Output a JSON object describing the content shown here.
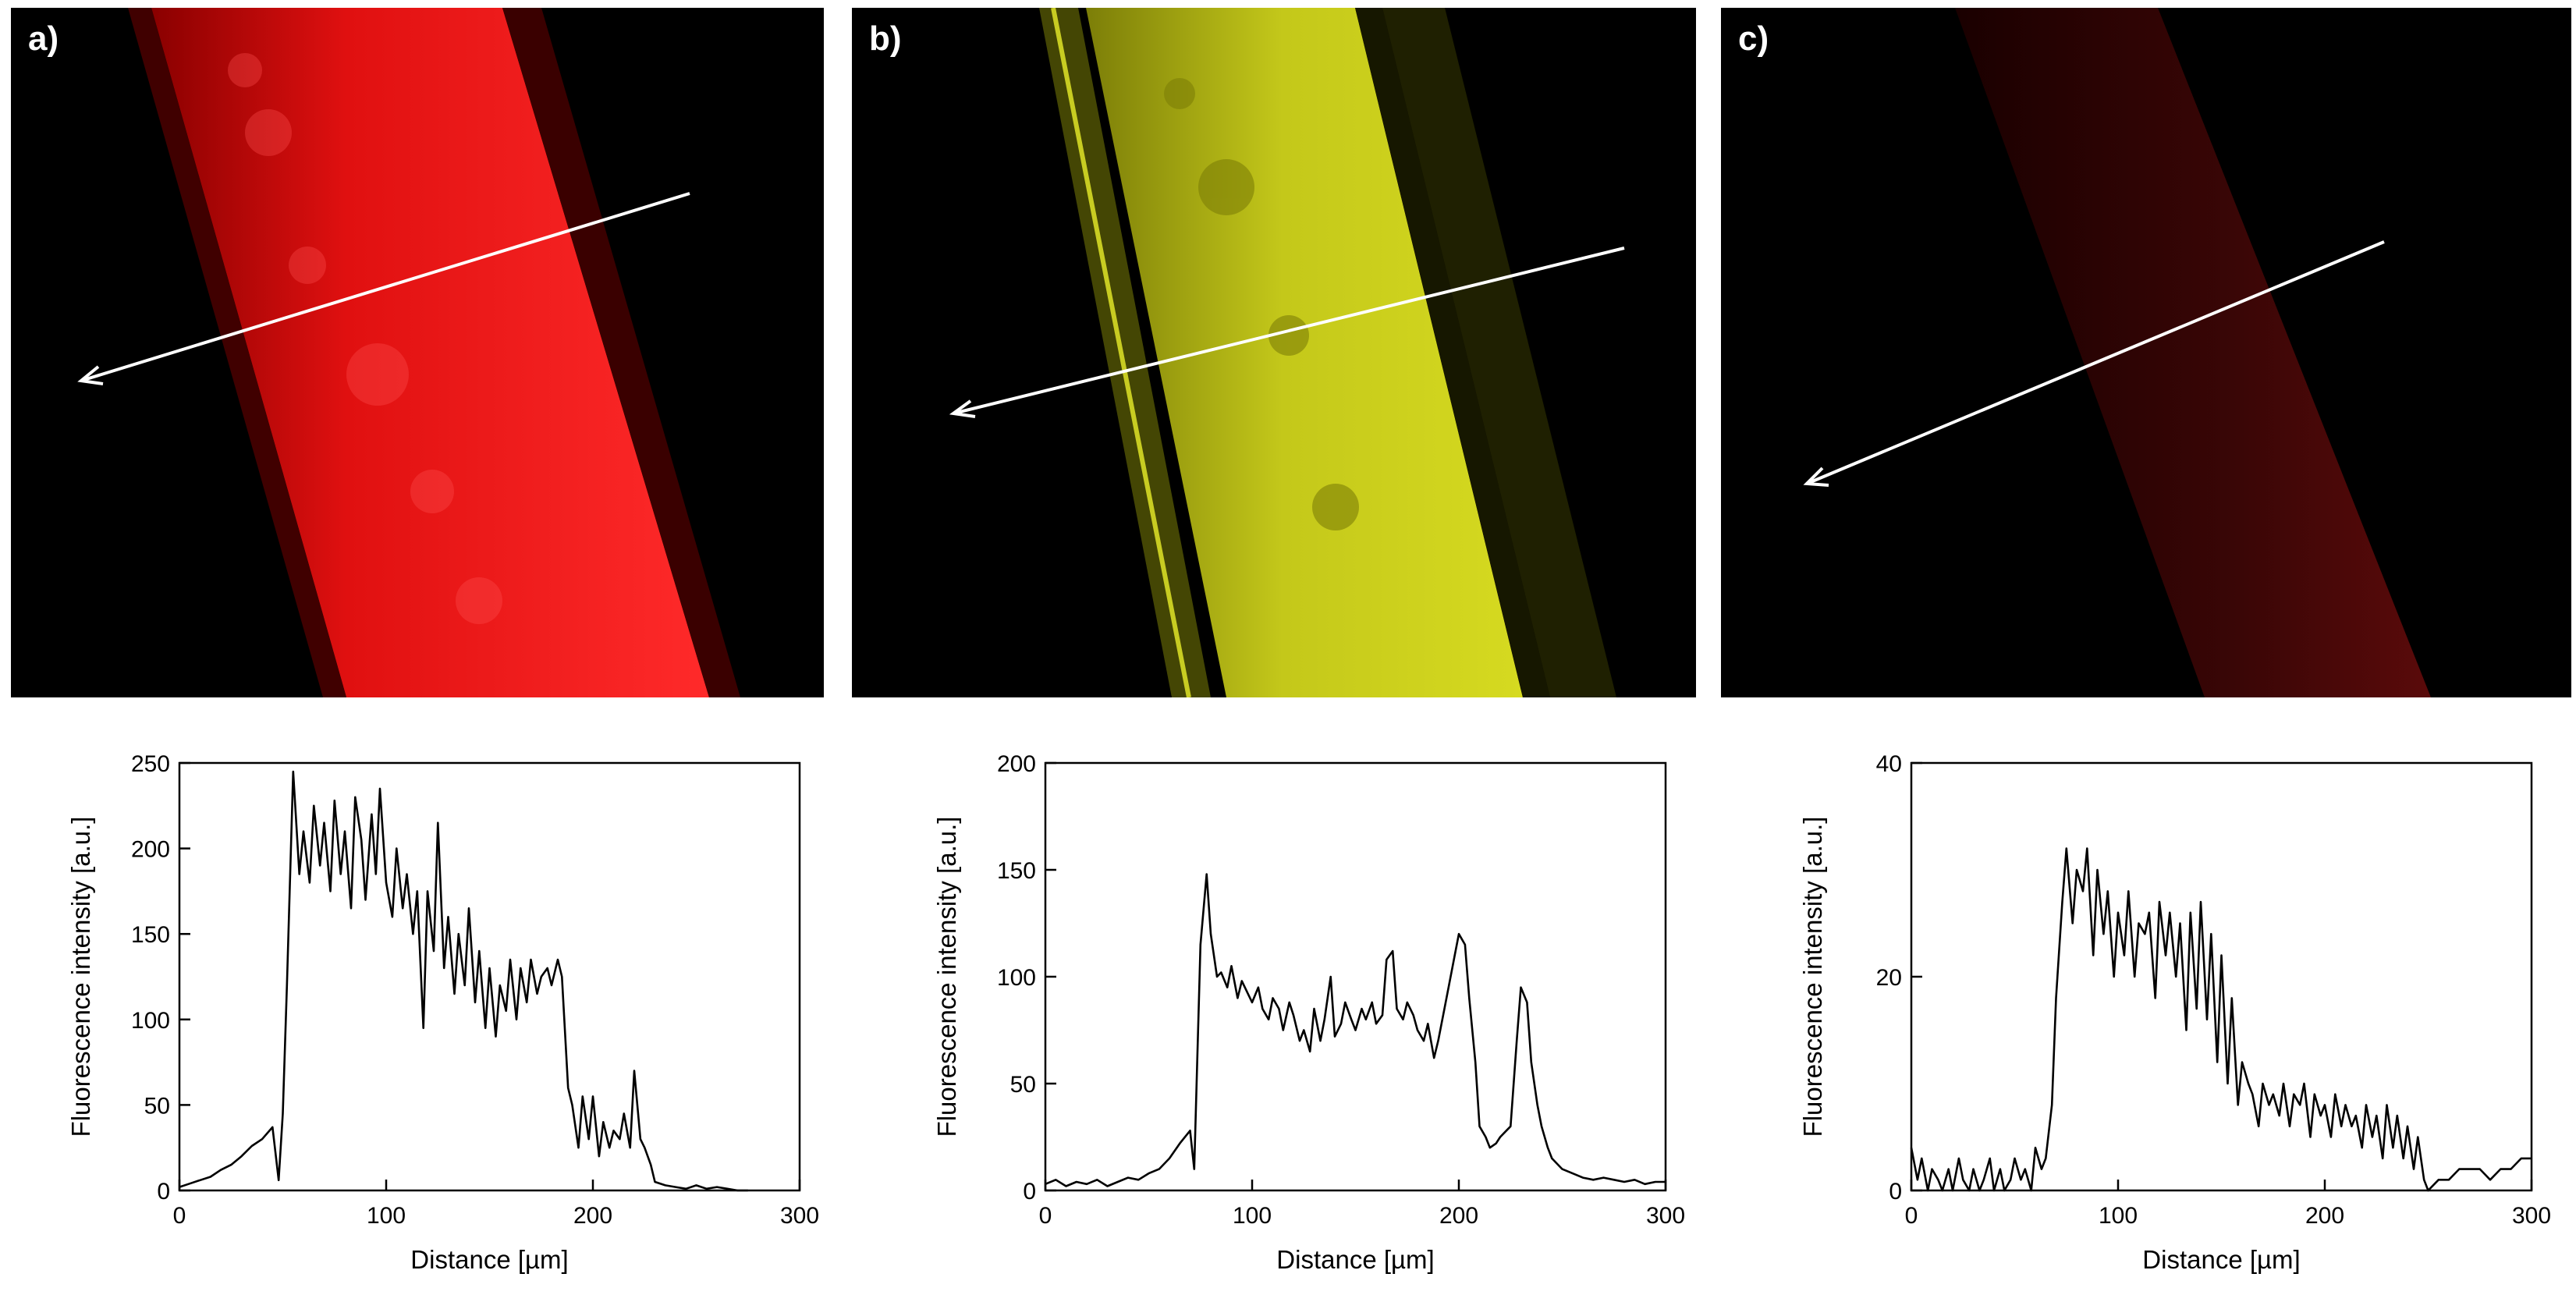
{
  "panels": [
    {
      "label": "a)",
      "tint": "#ff1a1a",
      "stripe_opacity": 0.95
    },
    {
      "label": "b)",
      "tint": "#d4d81c",
      "stripe_opacity": 0.9
    },
    {
      "label": "c)",
      "tint": "#5a0a0a",
      "stripe_opacity": 0.55
    }
  ],
  "chart_data": [
    {
      "type": "line",
      "xlabel": "Distance [µm]",
      "ylabel": "Fluorescence intensity [a.u.]",
      "xlim": [
        0,
        300
      ],
      "ylim": [
        0,
        250
      ],
      "xticks": [
        0,
        100,
        200,
        300
      ],
      "yticks": [
        0,
        50,
        100,
        150,
        200,
        250
      ],
      "series": [
        {
          "x": [
            0,
            5,
            10,
            15,
            20,
            25,
            30,
            35,
            40,
            45,
            48,
            50,
            52,
            55,
            58,
            60,
            63,
            65,
            68,
            70,
            73,
            75,
            78,
            80,
            83,
            85,
            88,
            90,
            93,
            95,
            97,
            100,
            103,
            105,
            108,
            110,
            113,
            115,
            118,
            120,
            123,
            125,
            128,
            130,
            133,
            135,
            138,
            140,
            143,
            145,
            148,
            150,
            153,
            155,
            158,
            160,
            163,
            165,
            168,
            170,
            173,
            175,
            178,
            180,
            183,
            185,
            188,
            190,
            193,
            195,
            198,
            200,
            203,
            205,
            208,
            210,
            213,
            215,
            218,
            220,
            223,
            225,
            228,
            230,
            235,
            240,
            245,
            250,
            255,
            260,
            265,
            270,
            275
          ],
          "y": [
            2,
            4,
            6,
            8,
            12,
            15,
            20,
            26,
            30,
            37,
            6,
            45,
            120,
            245,
            185,
            210,
            180,
            225,
            190,
            215,
            175,
            228,
            185,
            210,
            165,
            230,
            205,
            170,
            220,
            185,
            235,
            180,
            160,
            200,
            165,
            185,
            150,
            175,
            95,
            175,
            140,
            215,
            130,
            160,
            115,
            150,
            120,
            165,
            110,
            140,
            95,
            130,
            90,
            120,
            105,
            135,
            100,
            130,
            110,
            135,
            115,
            125,
            130,
            120,
            135,
            125,
            60,
            50,
            25,
            55,
            30,
            55,
            20,
            40,
            25,
            35,
            30,
            45,
            25,
            70,
            30,
            25,
            15,
            5,
            3,
            2,
            1,
            3,
            1,
            2,
            1,
            0,
            0
          ]
        }
      ]
    },
    {
      "type": "line",
      "xlabel": "Distance [µm]",
      "ylabel": "Fluorescence intensity [a.u.]",
      "xlim": [
        0,
        300
      ],
      "ylim": [
        0,
        200
      ],
      "xticks": [
        0,
        100,
        200,
        300
      ],
      "yticks": [
        0,
        50,
        100,
        150,
        200
      ],
      "series": [
        {
          "x": [
            0,
            5,
            10,
            15,
            20,
            25,
            30,
            35,
            40,
            45,
            50,
            55,
            60,
            65,
            70,
            72,
            75,
            78,
            80,
            83,
            85,
            88,
            90,
            93,
            95,
            98,
            100,
            103,
            105,
            108,
            110,
            113,
            115,
            118,
            120,
            123,
            125,
            128,
            130,
            133,
            135,
            138,
            140,
            143,
            145,
            148,
            150,
            153,
            155,
            158,
            160,
            163,
            165,
            168,
            170,
            173,
            175,
            178,
            180,
            183,
            185,
            188,
            190,
            193,
            195,
            198,
            200,
            203,
            205,
            208,
            210,
            213,
            215,
            218,
            220,
            223,
            225,
            228,
            230,
            233,
            235,
            238,
            240,
            243,
            245,
            250,
            255,
            260,
            265,
            270,
            275,
            280,
            285,
            290,
            295,
            300
          ],
          "y": [
            3,
            5,
            2,
            4,
            3,
            5,
            2,
            4,
            6,
            5,
            8,
            10,
            15,
            22,
            28,
            10,
            115,
            148,
            120,
            100,
            102,
            95,
            105,
            90,
            98,
            92,
            88,
            95,
            85,
            80,
            90,
            85,
            75,
            88,
            82,
            70,
            75,
            65,
            85,
            70,
            80,
            100,
            72,
            78,
            88,
            80,
            75,
            85,
            80,
            88,
            78,
            82,
            108,
            112,
            85,
            80,
            88,
            82,
            75,
            70,
            78,
            62,
            70,
            85,
            95,
            110,
            120,
            115,
            90,
            60,
            30,
            25,
            20,
            22,
            25,
            28,
            30,
            70,
            95,
            88,
            60,
            40,
            30,
            20,
            15,
            10,
            8,
            6,
            5,
            6,
            5,
            4,
            5,
            3,
            4,
            4
          ]
        }
      ]
    },
    {
      "type": "line",
      "xlabel": "Distance [µm]",
      "ylabel": "Fluorescence intensity [a.u.]",
      "xlim": [
        0,
        300
      ],
      "ylim": [
        0,
        40
      ],
      "xticks": [
        0,
        100,
        200,
        300
      ],
      "yticks": [
        0,
        20,
        40
      ],
      "series": [
        {
          "x": [
            0,
            3,
            5,
            8,
            10,
            13,
            15,
            18,
            20,
            23,
            25,
            28,
            30,
            33,
            35,
            38,
            40,
            43,
            45,
            48,
            50,
            53,
            55,
            58,
            60,
            63,
            65,
            68,
            70,
            73,
            75,
            78,
            80,
            83,
            85,
            88,
            90,
            93,
            95,
            98,
            100,
            103,
            105,
            108,
            110,
            113,
            115,
            118,
            120,
            123,
            125,
            128,
            130,
            133,
            135,
            138,
            140,
            143,
            145,
            148,
            150,
            153,
            155,
            158,
            160,
            163,
            165,
            168,
            170,
            173,
            175,
            178,
            180,
            183,
            185,
            188,
            190,
            193,
            195,
            198,
            200,
            203,
            205,
            208,
            210,
            213,
            215,
            218,
            220,
            223,
            225,
            228,
            230,
            233,
            235,
            238,
            240,
            243,
            245,
            248,
            250,
            255,
            260,
            265,
            270,
            275,
            280,
            285,
            290,
            295,
            300
          ],
          "y": [
            4,
            1,
            3,
            0,
            2,
            1,
            0,
            2,
            0,
            3,
            1,
            0,
            2,
            0,
            1,
            3,
            0,
            2,
            0,
            1,
            3,
            1,
            2,
            0,
            4,
            2,
            3,
            8,
            18,
            27,
            32,
            25,
            30,
            28,
            32,
            22,
            30,
            24,
            28,
            20,
            26,
            22,
            28,
            20,
            25,
            24,
            26,
            18,
            27,
            22,
            26,
            20,
            25,
            15,
            26,
            17,
            27,
            16,
            24,
            12,
            22,
            10,
            18,
            8,
            12,
            10,
            9,
            6,
            10,
            8,
            9,
            7,
            10,
            6,
            9,
            8,
            10,
            5,
            9,
            7,
            8,
            5,
            9,
            6,
            8,
            6,
            7,
            4,
            8,
            5,
            7,
            3,
            8,
            4,
            7,
            3,
            6,
            2,
            5,
            1,
            0,
            1,
            1,
            2,
            2,
            2,
            1,
            2,
            2,
            3,
            3
          ]
        }
      ]
    }
  ]
}
